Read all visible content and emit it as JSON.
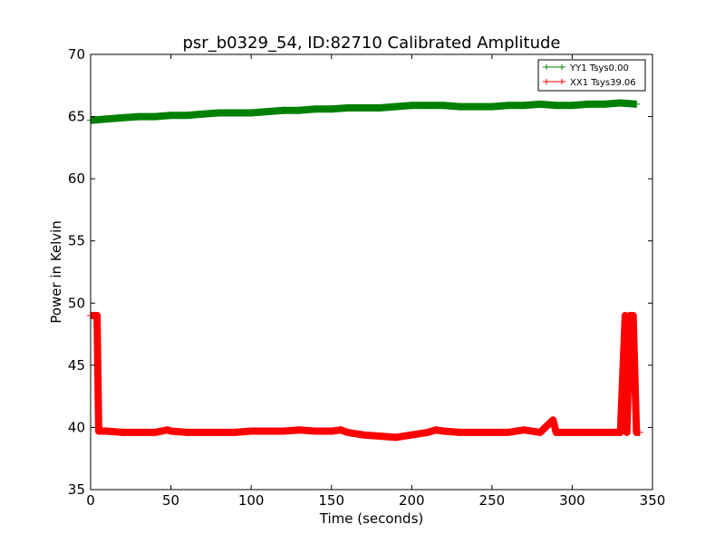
{
  "chart_data": {
    "type": "line",
    "title": "psr_b0329_54, ID:82710 Calibrated Amplitude",
    "xlabel": "Time (seconds)",
    "ylabel": "Power in Kelvin",
    "xlim": [
      0,
      350
    ],
    "ylim": [
      35,
      70
    ],
    "xticks": [
      "0",
      "50",
      "100",
      "150",
      "200",
      "250",
      "300",
      "350"
    ],
    "yticks": [
      "35",
      "40",
      "45",
      "50",
      "55",
      "60",
      "65",
      "70"
    ],
    "grid": false,
    "legend_position": "top-right",
    "series": [
      {
        "name": "YY1 Tsys0.00",
        "color": "#008000",
        "x": [
          0,
          10,
          20,
          30,
          40,
          50,
          60,
          70,
          80,
          90,
          100,
          110,
          120,
          130,
          140,
          150,
          160,
          170,
          180,
          190,
          200,
          210,
          220,
          230,
          240,
          250,
          260,
          270,
          280,
          290,
          300,
          310,
          320,
          330,
          340
        ],
        "y": [
          64.7,
          64.8,
          64.9,
          65.0,
          65.0,
          65.1,
          65.1,
          65.2,
          65.3,
          65.3,
          65.3,
          65.4,
          65.5,
          65.5,
          65.6,
          65.6,
          65.7,
          65.7,
          65.7,
          65.8,
          65.9,
          65.9,
          65.9,
          65.8,
          65.8,
          65.8,
          65.9,
          65.9,
          66.0,
          65.9,
          65.9,
          66.0,
          66.0,
          66.1,
          66.0
        ]
      },
      {
        "name": "XX1 Tsys39.06",
        "color": "#ff0000",
        "x": [
          0,
          4,
          5,
          10,
          20,
          30,
          40,
          48,
          50,
          60,
          70,
          80,
          90,
          100,
          110,
          120,
          130,
          140,
          150,
          156,
          160,
          170,
          180,
          190,
          200,
          210,
          215,
          220,
          230,
          240,
          250,
          260,
          270,
          280,
          288,
          290,
          300,
          310,
          320,
          330,
          333,
          334,
          336,
          338,
          340,
          342
        ],
        "y": [
          49.0,
          49.0,
          39.7,
          39.7,
          39.6,
          39.6,
          39.6,
          39.8,
          39.7,
          39.6,
          39.6,
          39.6,
          39.6,
          39.7,
          39.7,
          39.7,
          39.8,
          39.7,
          39.7,
          39.8,
          39.6,
          39.4,
          39.3,
          39.2,
          39.4,
          39.6,
          39.8,
          39.7,
          39.6,
          39.6,
          39.6,
          39.6,
          39.8,
          39.6,
          40.6,
          39.6,
          39.6,
          39.6,
          39.6,
          39.6,
          49.0,
          39.6,
          49.0,
          49.0,
          39.6,
          39.6
        ]
      }
    ]
  }
}
